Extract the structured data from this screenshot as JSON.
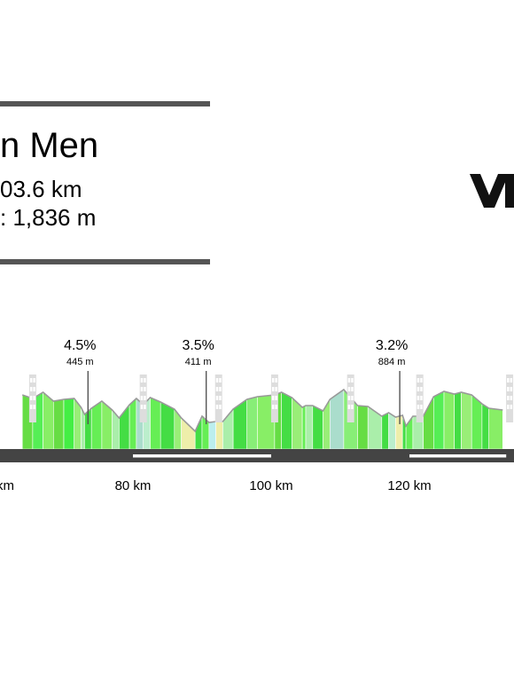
{
  "header": {
    "title": "n Men",
    "distance": "03.6 km",
    "elevation": ": 1,836 m"
  },
  "logo": {
    "text": "VC",
    "color": "#111111"
  },
  "colors": {
    "bar": "#555555",
    "axis_bar": "#444444",
    "ridge": "#999999",
    "axis_white": "#ffffff"
  },
  "chart_data": {
    "type": "area",
    "title": "",
    "xlabel": "",
    "ylabel": "",
    "x_tick_labels": [
      {
        "km": 65,
        "label": "km"
      },
      {
        "km": 80,
        "label": "80 km"
      },
      {
        "km": 100,
        "label": "100 km"
      },
      {
        "km": 120,
        "label": "120 km"
      }
    ],
    "gradient_labels": [
      {
        "km": 73.5,
        "percent": "4.5%",
        "elevation": "445 m"
      },
      {
        "km": 90.6,
        "percent": "3.5%",
        "elevation": "411 m"
      },
      {
        "km": 118.6,
        "percent": "3.2%",
        "elevation": "884 m"
      }
    ],
    "elevation_profile_km": [
      [
        64,
        61
      ],
      [
        65.5,
        57
      ],
      [
        67,
        64
      ],
      [
        68.5,
        54
      ],
      [
        70,
        56
      ],
      [
        71.5,
        57
      ],
      [
        72.5,
        47
      ],
      [
        73,
        39
      ],
      [
        74,
        46
      ],
      [
        75.5,
        54
      ],
      [
        77,
        44
      ],
      [
        78,
        35
      ],
      [
        79.5,
        50
      ],
      [
        80.5,
        57
      ],
      [
        81.5,
        50
      ],
      [
        82.5,
        58
      ],
      [
        84,
        53
      ],
      [
        86,
        45
      ],
      [
        87,
        35
      ],
      [
        89,
        20
      ],
      [
        90,
        37
      ],
      [
        91,
        30
      ],
      [
        92,
        31
      ],
      [
        93,
        31
      ],
      [
        94.5,
        45
      ],
      [
        96.5,
        56
      ],
      [
        98,
        59
      ],
      [
        100.5,
        61
      ],
      [
        101.5,
        64
      ],
      [
        103,
        58
      ],
      [
        104.5,
        47
      ],
      [
        105,
        49
      ],
      [
        106,
        49
      ],
      [
        107.5,
        43
      ],
      [
        108.5,
        56
      ],
      [
        110.5,
        67
      ],
      [
        112.5,
        49
      ],
      [
        114,
        48
      ],
      [
        116,
        37
      ],
      [
        117,
        41
      ],
      [
        118,
        36
      ],
      [
        119,
        38
      ],
      [
        119.5,
        26
      ],
      [
        120.5,
        37
      ],
      [
        122,
        37
      ],
      [
        123.5,
        59
      ],
      [
        125,
        65
      ],
      [
        126.5,
        62
      ],
      [
        127.5,
        64
      ],
      [
        129,
        61
      ],
      [
        130.5,
        51
      ],
      [
        131.5,
        46
      ],
      [
        133.5,
        44
      ]
    ],
    "segment_colors": [
      "#66dd44",
      "#55ee55",
      "#88ee66",
      "#66dd44",
      "#44ee44",
      "#99ee77",
      "#aaeeaa",
      "#44dd44",
      "#66ee55",
      "#88ee66",
      "#aaeeaa",
      "#44dd44",
      "#66ee55",
      "#aaddcc",
      "#bbeecc",
      "#66ee55",
      "#44dd44",
      "#99ee77",
      "#eeeeaa",
      "#44dd44",
      "#66ee55",
      "#bbeeee",
      "#eeeeaa",
      "#aaeeaa",
      "#44dd44",
      "#88ee77",
      "#88ee66",
      "#66dd44",
      "#44dd44",
      "#99ee77",
      "#66ee55",
      "#aaeeaa",
      "#44dd44",
      "#99ee77",
      "#aaddcc",
      "#88ee77",
      "#66dd44",
      "#aaeeaa",
      "#44dd44",
      "#bbeecc",
      "#eeeeaa",
      "#44dd44",
      "#66ee55",
      "#aaeeaa",
      "#66dd44",
      "#55ee55",
      "#88ee66",
      "#44dd44",
      "#99ee77",
      "#66ee55",
      "#44dd44",
      "#88ee66"
    ],
    "markers_km": [
      65.5,
      81.5,
      92.4,
      100.5,
      111.5,
      121.5,
      134.5
    ],
    "gradient_lines_km": [
      73.5,
      90.6,
      118.6
    ],
    "white_segments_km": [
      [
        80,
        100
      ],
      [
        120,
        134
      ]
    ],
    "x_range_km": [
      64,
      134
    ],
    "grid": false
  }
}
